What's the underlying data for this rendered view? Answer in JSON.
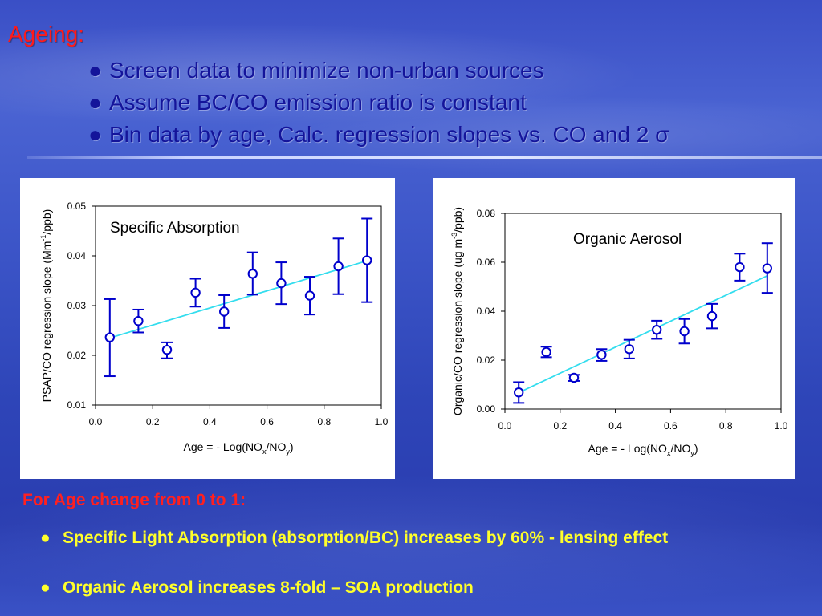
{
  "slide": {
    "title": "Ageing:",
    "bullet_char": "●",
    "bullets": [
      "Screen data to minimize non-urban sources",
      "Assume BC/CO emission ratio is constant",
      "Bin data by age, Calc. regression slopes vs. CO and 2 σ"
    ],
    "footer_heading": "For Age change from 0 to 1:",
    "footer_bullets": [
      "Specific Light Absorption (absorption/BC) increases by 60% - lensing effect",
      "Organic Aerosol increases 8-fold – SOA production"
    ],
    "colors": {
      "title": "#ff1a1a",
      "bullets": "#14149a",
      "footer_heading": "#ff2020",
      "footer_bullets": "#ffff2a"
    }
  },
  "chart_data": [
    {
      "type": "scatter",
      "annotation": "Specific Absorption",
      "xlabel": "Age = - Log(NO",
      "xlabel_sub1": "x",
      "xlabel_mid": "/NO",
      "xlabel_sub2": "y",
      "xlabel_end": ")",
      "ylabel": "PSAP/CO regression slope (Mm",
      "ylabel_sup": "-1",
      "ylabel_end": "/ppb)",
      "xlim": [
        0.0,
        1.0
      ],
      "ylim": [
        0.01,
        0.05
      ],
      "xticks": [
        "0.0",
        "0.2",
        "0.4",
        "0.6",
        "0.8",
        "1.0"
      ],
      "yticks": [
        "0.01",
        "0.02",
        "0.03",
        "0.04",
        "0.05"
      ],
      "grid": false,
      "marker_color": "#0000cc",
      "fit_color": "#33ddee",
      "series": [
        {
          "x": [
            0.05,
            0.15,
            0.25,
            0.35,
            0.45,
            0.55,
            0.65,
            0.75,
            0.85,
            0.95
          ],
          "y": [
            0.0236,
            0.0269,
            0.0211,
            0.0326,
            0.0288,
            0.0364,
            0.0345,
            0.032,
            0.0379,
            0.0391
          ],
          "err_low": [
            0.0158,
            0.0246,
            0.0194,
            0.0298,
            0.0255,
            0.0322,
            0.0303,
            0.0282,
            0.0323,
            0.0307
          ],
          "err_high": [
            0.0313,
            0.0292,
            0.0226,
            0.0354,
            0.0321,
            0.0407,
            0.0387,
            0.0358,
            0.0435,
            0.0475
          ]
        }
      ],
      "fit": {
        "x": [
          0.05,
          0.95
        ],
        "y": [
          0.0235,
          0.039
        ]
      }
    },
    {
      "type": "scatter",
      "annotation": "Organic Aerosol",
      "xlabel": "Age = - Log(NO",
      "xlabel_sub1": "x",
      "xlabel_mid": "/NO",
      "xlabel_sub2": "y",
      "xlabel_end": ")",
      "ylabel": "Organic/CO regression slope (ug m",
      "ylabel_sup": "-3",
      "ylabel_end": "/ppb)",
      "xlim": [
        0.0,
        1.0
      ],
      "ylim": [
        0.0,
        0.08
      ],
      "xticks": [
        "0.0",
        "0.2",
        "0.4",
        "0.6",
        "0.8",
        "1.0"
      ],
      "yticks": [
        "0.00",
        "0.02",
        "0.04",
        "0.06",
        "0.08"
      ],
      "grid": false,
      "marker_color": "#0000cc",
      "fit_color": "#33ddee",
      "series": [
        {
          "x": [
            0.05,
            0.15,
            0.25,
            0.35,
            0.45,
            0.55,
            0.65,
            0.75,
            0.85,
            0.95
          ],
          "y": [
            0.0068,
            0.0233,
            0.0128,
            0.0222,
            0.0245,
            0.0324,
            0.0318,
            0.038,
            0.058,
            0.0575
          ],
          "err_low": [
            0.0025,
            0.0212,
            0.0115,
            0.0197,
            0.0207,
            0.0287,
            0.0268,
            0.033,
            0.0525,
            0.0475
          ],
          "err_high": [
            0.011,
            0.0255,
            0.014,
            0.0245,
            0.0283,
            0.0361,
            0.0368,
            0.043,
            0.0635,
            0.0678
          ]
        }
      ],
      "fit": {
        "x": [
          0.05,
          0.95
        ],
        "y": [
          0.0067,
          0.0545
        ]
      }
    }
  ]
}
